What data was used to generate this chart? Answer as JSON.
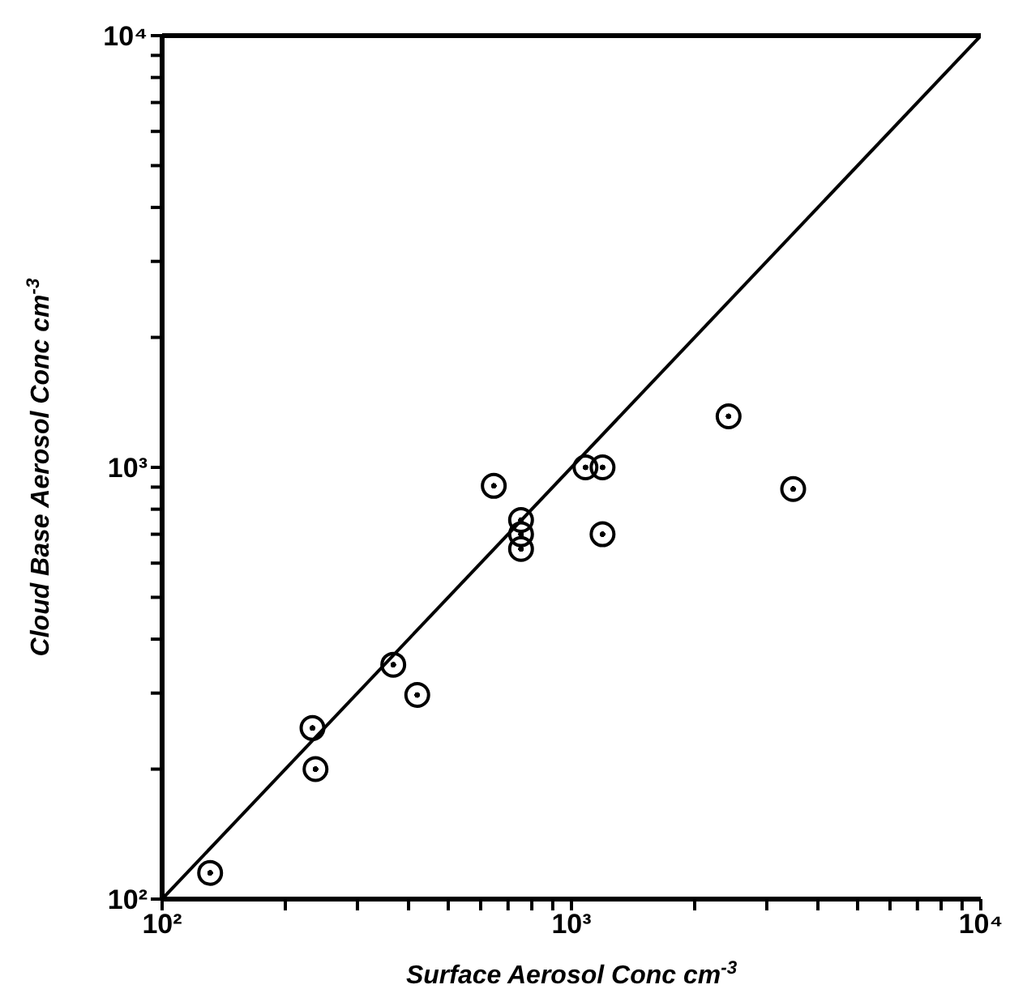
{
  "chart_data": {
    "type": "scatter",
    "xlabel": "Surface Aerosol Conc     cm$^{-3}$",
    "ylabel": "Cloud Base Aerosol Conc     cm$^{-3}$",
    "log": "xy",
    "xlim": [
      100,
      10000
    ],
    "ylim": [
      100,
      10000
    ],
    "xticks": [
      {
        "value": 100,
        "label": "10²"
      },
      {
        "value": 200,
        "label": null
      },
      {
        "value": 300,
        "label": null
      },
      {
        "value": 400,
        "label": null
      },
      {
        "value": 500,
        "label": null
      },
      {
        "value": 600,
        "label": null
      },
      {
        "value": 700,
        "label": null
      },
      {
        "value": 800,
        "label": null
      },
      {
        "value": 900,
        "label": null
      },
      {
        "value": 1000,
        "label": "10³"
      },
      {
        "value": 2000,
        "label": null
      },
      {
        "value": 3000,
        "label": null
      },
      {
        "value": 4000,
        "label": null
      },
      {
        "value": 5000,
        "label": null
      },
      {
        "value": 6000,
        "label": null
      },
      {
        "value": 7000,
        "label": null
      },
      {
        "value": 8000,
        "label": null
      },
      {
        "value": 9000,
        "label": null
      },
      {
        "value": 10000,
        "label": "10⁴"
      }
    ],
    "yticks": [
      {
        "value": 100,
        "label": "10²"
      },
      {
        "value": 200,
        "label": null
      },
      {
        "value": 300,
        "label": null
      },
      {
        "value": 400,
        "label": null
      },
      {
        "value": 500,
        "label": null
      },
      {
        "value": 600,
        "label": null
      },
      {
        "value": 700,
        "label": null
      },
      {
        "value": 800,
        "label": null
      },
      {
        "value": 900,
        "label": null
      },
      {
        "value": 1000,
        "label": "10³"
      },
      {
        "value": 2000,
        "label": null
      },
      {
        "value": 3000,
        "label": null
      },
      {
        "value": 4000,
        "label": null
      },
      {
        "value": 5000,
        "label": null
      },
      {
        "value": 6000,
        "label": null
      },
      {
        "value": 7000,
        "label": null
      },
      {
        "value": 8000,
        "label": null
      },
      {
        "value": 9000,
        "label": null
      },
      {
        "value": 10000,
        "label": "10⁴"
      }
    ],
    "grid": false,
    "legend": false,
    "series": [
      {
        "color": "#000000",
        "marker": "circle",
        "x": [
          131,
          233,
          237,
          367,
          420,
          646,
          753,
          753,
          753,
          1082,
          1191,
          1191,
          2420,
          3480
        ],
        "values": [
          115,
          249,
          200,
          349,
          297,
          906,
          755,
          700,
          647,
          1000,
          1000,
          700,
          1313,
          891
        ]
      },
      {
        "type": "line",
        "color": "#000000",
        "marker": "none",
        "line_style": "solid",
        "x": [
          100,
          10000
        ],
        "values": [
          100,
          10000
        ]
      }
    ]
  }
}
